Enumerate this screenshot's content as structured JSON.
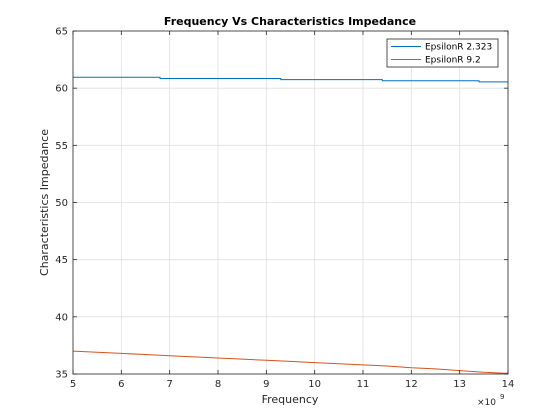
{
  "chart_data": {
    "type": "line",
    "title": "Frequency Vs Characteristics Impedance",
    "xlabel": "Frequency",
    "ylabel": "Characteristics Impedance",
    "x_multiplier_label": "×10",
    "x_multiplier_exponent": "9",
    "xlim": [
      5,
      14
    ],
    "ylim": [
      35,
      65
    ],
    "x_ticks": [
      "5",
      "6",
      "7",
      "8",
      "9",
      "10",
      "11",
      "12",
      "13",
      "14"
    ],
    "y_ticks": [
      "35",
      "40",
      "45",
      "50",
      "55",
      "60",
      "65"
    ],
    "grid": true,
    "legend_position": "top-right",
    "series": [
      {
        "name": "EpsilonR 2.323",
        "color": "#0072BD",
        "x": [
          5,
          6.8,
          6.8,
          9.3,
          9.3,
          11.4,
          11.4,
          13.4,
          13.4,
          14
        ],
        "y": [
          60.95,
          60.95,
          60.85,
          60.85,
          60.75,
          60.75,
          60.65,
          60.65,
          60.55,
          60.55
        ]
      },
      {
        "name": "EpsilonR 9.2",
        "color": "#D95319",
        "x": [
          5,
          5.5,
          6,
          6.5,
          7,
          7.5,
          8,
          8.5,
          9,
          9.5,
          10,
          10.5,
          11,
          11.5,
          12,
          12.5,
          13,
          13.5,
          14
        ],
        "y": [
          37.0,
          36.9,
          36.8,
          36.7,
          36.6,
          36.5,
          36.4,
          36.3,
          36.2,
          36.1,
          36.0,
          35.9,
          35.8,
          35.7,
          35.55,
          35.45,
          35.3,
          35.15,
          35.05
        ]
      }
    ]
  }
}
